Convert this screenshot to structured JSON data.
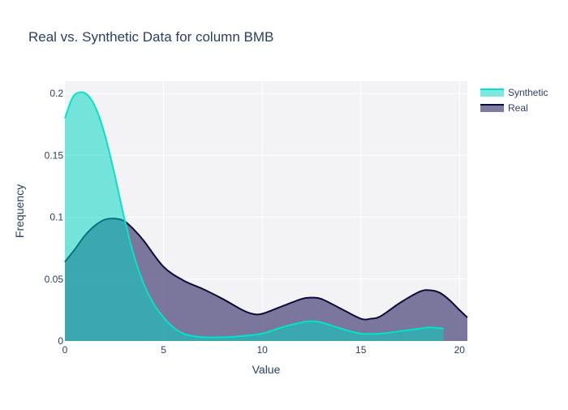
{
  "chart_data": {
    "type": "area",
    "title": "Real vs. Synthetic Data for column BMB",
    "xlabel": "Value",
    "ylabel": "Frequency",
    "xlim": [
      0,
      20.4
    ],
    "ylim": [
      0,
      0.21
    ],
    "x_ticks": [
      0,
      5,
      10,
      15,
      20
    ],
    "x_tick_labels": [
      "0",
      "5",
      "10",
      "15",
      "20"
    ],
    "y_ticks": [
      0,
      0.05,
      0.1,
      0.15,
      0.2
    ],
    "y_tick_labels": [
      "0",
      "0.05",
      "0.1",
      "0.15",
      "0.2"
    ],
    "grid": true,
    "legend_position": "top-right",
    "series": [
      {
        "name": "Synthetic",
        "line_color": "#00e5c8",
        "fill_color": "rgba(0,214,192,0.52)",
        "x": [
          0,
          0.4,
          0.8,
          1.2,
          1.6,
          2.0,
          2.5,
          3.0,
          3.5,
          4.0,
          4.5,
          5.0,
          5.5,
          6.0,
          6.5,
          7.0,
          8.0,
          9.0,
          10.0,
          11.0,
          12.0,
          12.5,
          13.0,
          14.0,
          15.0,
          16.0,
          17.0,
          18.0,
          18.5,
          19.2
        ],
        "y": [
          0.18,
          0.197,
          0.201,
          0.198,
          0.187,
          0.168,
          0.136,
          0.1,
          0.069,
          0.046,
          0.03,
          0.019,
          0.011,
          0.006,
          0.004,
          0.003,
          0.003,
          0.004,
          0.006,
          0.011,
          0.015,
          0.016,
          0.015,
          0.01,
          0.006,
          0.006,
          0.008,
          0.01,
          0.011,
          0.01
        ]
      },
      {
        "name": "Real",
        "line_color": "#0b0b3c",
        "fill_color": "rgba(42,35,96,0.6)",
        "x": [
          0,
          0.5,
          1.0,
          1.5,
          2.0,
          2.5,
          3.0,
          3.5,
          4.0,
          5.0,
          6.0,
          7.0,
          8.0,
          9.0,
          9.5,
          10.0,
          11.0,
          12.0,
          12.5,
          13.0,
          14.0,
          15.0,
          15.5,
          16.0,
          17.0,
          18.0,
          18.5,
          19.0,
          19.5,
          20.0,
          20.4
        ],
        "y": [
          0.064,
          0.074,
          0.085,
          0.093,
          0.098,
          0.099,
          0.097,
          0.09,
          0.081,
          0.06,
          0.049,
          0.042,
          0.034,
          0.025,
          0.022,
          0.022,
          0.028,
          0.034,
          0.035,
          0.034,
          0.026,
          0.018,
          0.018,
          0.02,
          0.031,
          0.04,
          0.041,
          0.039,
          0.033,
          0.025,
          0.019
        ]
      }
    ]
  }
}
